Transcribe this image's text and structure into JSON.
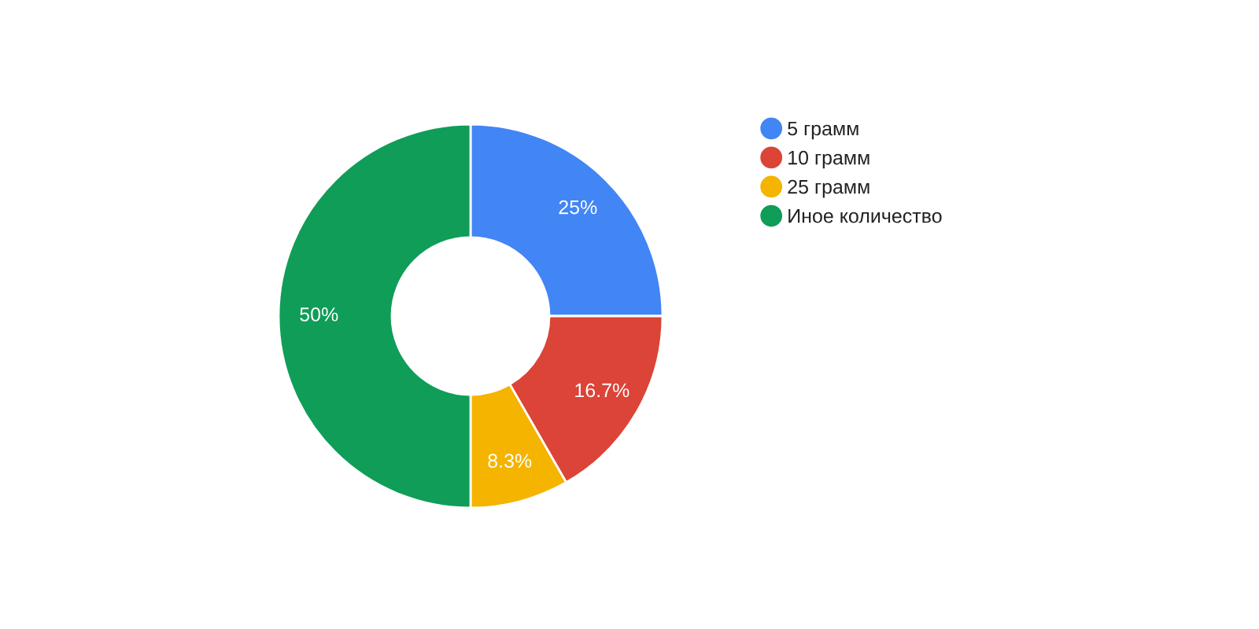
{
  "chart_data": {
    "type": "donut",
    "categories": [
      "5 грамм",
      "10 грамм",
      "25 грамм",
      "Иное количество"
    ],
    "values": [
      25,
      16.7,
      8.3,
      50
    ],
    "colors": [
      "#4285f4",
      "#db4437",
      "#f4b400",
      "#0f9d58"
    ],
    "value_labels": [
      "25%",
      "16.7%",
      "8.3%",
      "50%"
    ],
    "legend": "top right"
  }
}
